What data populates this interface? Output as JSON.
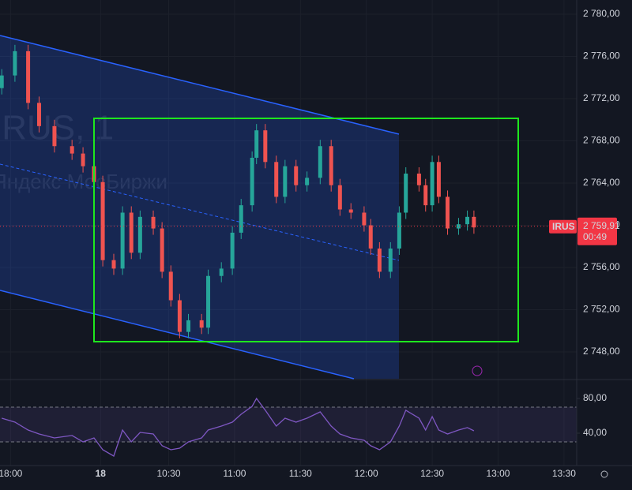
{
  "chart_data": [
    {
      "type": "candlestick",
      "symbol": "IRUS",
      "watermark": "IRUS, 1",
      "exchange": "Яндекс МосБиржи",
      "up_color": "#26a69a",
      "down_color": "#ef5350",
      "x": [
        -106,
        -100,
        -94,
        -89,
        -82,
        -74,
        -69,
        -64,
        -60,
        -55,
        -51,
        -47,
        -43,
        -37,
        -33,
        -29,
        -25,
        -21,
        -15,
        -12,
        -6,
        -1,
        3,
        8,
        10,
        14,
        19,
        23,
        28,
        33,
        39,
        44,
        48,
        53,
        59,
        62,
        66,
        71,
        75,
        78,
        84,
        87,
        90,
        93,
        97,
        102,
        106,
        109
      ],
      "open": [
        2773.0,
        2774.2,
        2776.5,
        2771.6,
        2769.4,
        2767.5,
        2766.8,
        2765.6,
        2764.1,
        2756.7,
        2755.9,
        2761.2,
        2757.4,
        2760.8,
        2759.7,
        2755.6,
        2752.9,
        2749.9,
        2751.0,
        2750.3,
        2755.2,
        2755.9,
        2759.3,
        2761.9,
        2766.4,
        2769.0,
        2766.0,
        2762.7,
        2765.6,
        2763.8,
        2764.5,
        2767.5,
        2763.8,
        2761.5,
        2761.2,
        2760.0,
        2757.8,
        2755.6,
        2757.8,
        2761.2,
        2764.9,
        2763.8,
        2761.9,
        2766.0,
        2762.7,
        2759.7,
        2760.1,
        2760.8
      ],
      "high": [
        2774.8,
        2777.1,
        2777.1,
        2772.2,
        2770.0,
        2768.1,
        2767.4,
        2766.2,
        2764.7,
        2757.3,
        2761.8,
        2761.8,
        2761.4,
        2761.4,
        2760.3,
        2756.2,
        2753.5,
        2751.6,
        2751.6,
        2755.8,
        2756.5,
        2759.9,
        2762.5,
        2767.0,
        2769.6,
        2769.6,
        2766.6,
        2766.2,
        2766.2,
        2765.1,
        2768.1,
        2768.1,
        2764.4,
        2762.1,
        2761.8,
        2760.6,
        2758.4,
        2758.4,
        2761.8,
        2765.5,
        2765.5,
        2764.4,
        2766.6,
        2766.6,
        2763.3,
        2760.7,
        2761.4,
        2761.4
      ],
      "low": [
        2772.4,
        2773.6,
        2771.0,
        2768.8,
        2766.9,
        2766.2,
        2765.0,
        2763.5,
        2756.1,
        2755.3,
        2755.3,
        2756.8,
        2756.8,
        2759.1,
        2755.0,
        2752.3,
        2749.3,
        2749.3,
        2749.7,
        2749.7,
        2754.6,
        2755.3,
        2758.7,
        2761.3,
        2765.8,
        2765.4,
        2762.1,
        2762.1,
        2763.2,
        2763.2,
        2763.9,
        2763.2,
        2760.9,
        2760.6,
        2759.4,
        2757.2,
        2755.0,
        2755.0,
        2757.2,
        2760.6,
        2763.2,
        2761.3,
        2761.3,
        2762.1,
        2759.1,
        2759.1,
        2759.5,
        2759.2
      ],
      "close": [
        2774.2,
        2776.5,
        2771.6,
        2769.4,
        2767.5,
        2766.8,
        2765.6,
        2764.1,
        2756.7,
        2755.9,
        2761.2,
        2757.4,
        2760.8,
        2759.7,
        2755.6,
        2752.9,
        2749.9,
        2751.0,
        2750.3,
        2755.2,
        2755.9,
        2759.3,
        2761.9,
        2766.4,
        2769.0,
        2766.0,
        2762.7,
        2765.6,
        2763.8,
        2764.5,
        2767.5,
        2763.8,
        2761.5,
        2761.2,
        2760.0,
        2757.8,
        2755.6,
        2757.8,
        2761.2,
        2764.9,
        2763.8,
        2761.9,
        2766.0,
        2762.7,
        2759.7,
        2760.1,
        2760.8,
        2759.8
      ],
      "last_price": {
        "value": 2759.91,
        "label": "2 759,91"
      },
      "countdown": "00:49",
      "xlim": [
        -106.8,
        155.8
      ],
      "xticks": [
        {
          "value": -102,
          "label": "18:00"
        },
        {
          "value": -61,
          "label": "18"
        },
        {
          "value": -30,
          "label": "10:30"
        },
        {
          "value": 0,
          "label": "11:00"
        },
        {
          "value": 30,
          "label": "11:30"
        },
        {
          "value": 60,
          "label": "12:00"
        },
        {
          "value": 90,
          "label": "12:30"
        },
        {
          "value": 120,
          "label": "13:00"
        },
        {
          "value": 150,
          "label": "13:30"
        }
      ],
      "ylim": [
        2745.46,
        2781.35
      ],
      "yticks": [
        {
          "value": 2748,
          "label": "2 748,00"
        },
        {
          "value": 2752,
          "label": "2 752,00"
        },
        {
          "value": 2756,
          "label": "2 756,00"
        },
        {
          "value": 2760,
          "label": "2 760,00"
        },
        {
          "value": 2764,
          "label": "2 764,00"
        },
        {
          "value": 2768,
          "label": "2 768,00"
        },
        {
          "value": 2772,
          "label": "2 772,00"
        },
        {
          "value": 2776,
          "label": "2 776,00"
        },
        {
          "value": 2780,
          "label": "2 780,00"
        }
      ],
      "grid": true
    },
    {
      "type": "line",
      "color": "#7e57c2",
      "x": [
        -106,
        -100,
        -94,
        -89,
        -82,
        -74,
        -69,
        -64,
        -60,
        -55,
        -51,
        -47,
        -43,
        -37,
        -33,
        -29,
        -25,
        -21,
        -15,
        -12,
        -6,
        -1,
        3,
        8,
        10,
        14,
        19,
        23,
        28,
        33,
        39,
        44,
        48,
        53,
        59,
        62,
        66,
        71,
        75,
        78,
        84,
        87,
        90,
        93,
        97,
        102,
        106,
        109
      ],
      "values": [
        57.3,
        52.7,
        43.6,
        39.1,
        34.5,
        37.3,
        30.0,
        34.5,
        20.9,
        13.6,
        43.6,
        30.0,
        40.9,
        39.1,
        25.5,
        20.9,
        22.7,
        30.0,
        34.5,
        43.6,
        48.2,
        52.7,
        61.8,
        70.9,
        80.0,
        66.4,
        48.2,
        57.3,
        52.7,
        57.3,
        64.5,
        48.2,
        39.1,
        34.5,
        31.8,
        25.5,
        20.9,
        30.0,
        48.2,
        66.4,
        57.3,
        43.6,
        59.1,
        43.6,
        39.1,
        43.6,
        46.4,
        42.7
      ],
      "band": [
        30,
        70
      ],
      "xlim": [
        -106.8,
        155.8
      ],
      "ylim": [
        2.7,
        100.9
      ],
      "yticks": [
        {
          "value": 40,
          "label": "40,00"
        },
        {
          "value": 80,
          "label": "80,00"
        }
      ]
    }
  ]
}
